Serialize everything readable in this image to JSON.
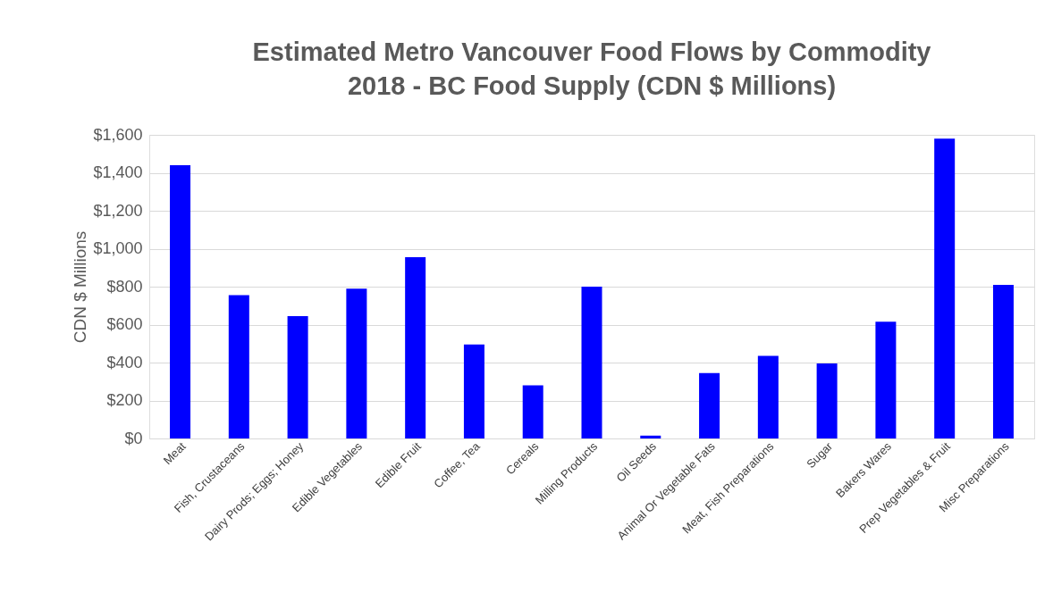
{
  "chart_data": {
    "type": "bar",
    "title": "Estimated Metro Vancouver Food Flows by Commodity\n2018 -  BC Food Supply (CDN $ Millions)",
    "ylabel": "CDN $ Millions",
    "categories": [
      "Meat",
      "Fish, Crustaceans",
      "Dairy Prods; Eggs; Honey",
      "Edible Vegetables",
      "Edible Fruit",
      "Coffee, Tea",
      "Cereals",
      "Milling Products",
      "Oil Seeds",
      "Animal Or Vegetable Fats",
      "Meat, Fish Preparations",
      "Sugar",
      "Bakers Wares",
      "Prep Vegetables & Fruit",
      "Misc Preparations"
    ],
    "values": [
      1440,
      755,
      645,
      790,
      955,
      495,
      280,
      800,
      15,
      345,
      435,
      395,
      615,
      1580,
      810
    ],
    "color": "#0000ff",
    "ylim": [
      0,
      1600
    ],
    "yticks": [
      {
        "value": 0,
        "label": "$0"
      },
      {
        "value": 200,
        "label": "$200"
      },
      {
        "value": 400,
        "label": "$400"
      },
      {
        "value": 600,
        "label": "$600"
      },
      {
        "value": 800,
        "label": "$800"
      },
      {
        "value": 1000,
        "label": "$1,000"
      },
      {
        "value": 1200,
        "label": "$1,200"
      },
      {
        "value": 1400,
        "label": "$1,400"
      },
      {
        "value": 1600,
        "label": "$1,600"
      }
    ],
    "grid": "y"
  }
}
